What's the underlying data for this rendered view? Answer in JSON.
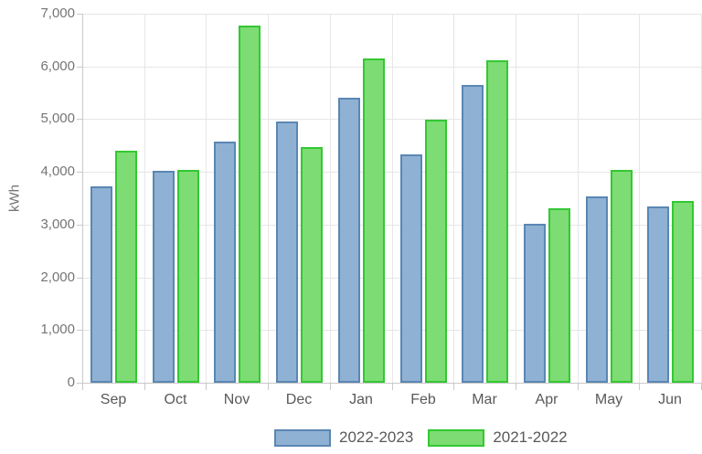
{
  "chart_data": {
    "type": "bar",
    "title": "",
    "xlabel": "",
    "ylabel": "kWh",
    "ylim": [
      0,
      7000
    ],
    "grid": true,
    "legend_position": "bottom",
    "categories": [
      "Sep",
      "Oct",
      "Nov",
      "Dec",
      "Jan",
      "Feb",
      "Mar",
      "Apr",
      "May",
      "Jun"
    ],
    "ytick_values": [
      0,
      1000,
      2000,
      3000,
      4000,
      5000,
      6000,
      7000
    ],
    "ytick_labels": [
      "0",
      "1,000",
      "2,000",
      "3,000",
      "4,000",
      "5,000",
      "6,000",
      "7,000"
    ],
    "series": [
      {
        "name": "2022-2023",
        "fill_color": "#8fb1d3",
        "border_color": "#5a87b4",
        "values": [
          3730,
          4020,
          4570,
          4950,
          5410,
          4330,
          5640,
          3020,
          3540,
          3340
        ]
      },
      {
        "name": "2021-2022",
        "fill_color": "#7ddc73",
        "border_color": "#33c833",
        "values": [
          4400,
          4040,
          6780,
          4470,
          6150,
          4990,
          6110,
          3310,
          4040,
          3440
        ]
      }
    ]
  },
  "palette": {
    "gridline": "#e6e6e6",
    "axis_line": "#c9c9c9",
    "ytick_text": "#757575",
    "xtick_text": "#595959",
    "legend_text": "#595959",
    "background": "#ffffff"
  }
}
